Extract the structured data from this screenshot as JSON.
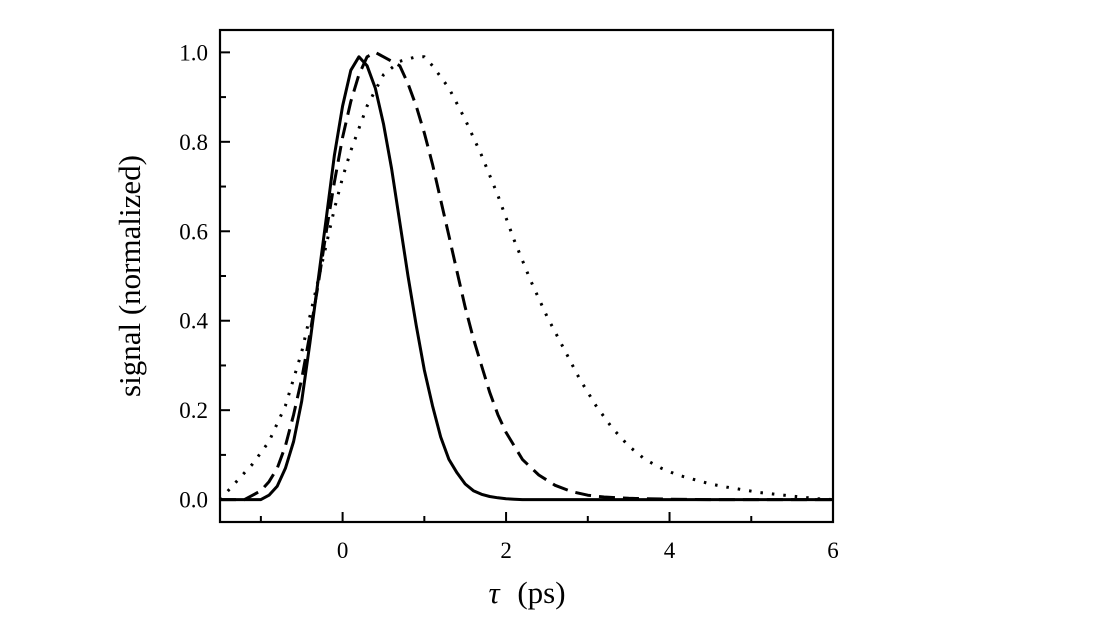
{
  "chart_data": {
    "type": "line",
    "xlabel_symbol": "τ",
    "xlabel_unit": "(ps)",
    "ylabel": "signal (normalized)",
    "xlim": [
      -1.5,
      6
    ],
    "ylim": [
      -0.05,
      1.05
    ],
    "x_ticks": [
      0,
      2,
      4,
      6
    ],
    "y_ticks": [
      0.0,
      0.2,
      0.4,
      0.6,
      0.8,
      1.0
    ],
    "x_minor_ticks": [
      -1,
      1,
      3,
      5
    ],
    "y_minor_ticks": [
      0.1,
      0.3,
      0.5,
      0.7,
      0.9
    ],
    "x_tick_labels": [
      "0",
      "2",
      "4",
      "6"
    ],
    "y_tick_labels": [
      "0.0",
      "0.2",
      "0.4",
      "0.6",
      "0.8",
      "1.0"
    ],
    "grid": false,
    "series": [
      {
        "style": "solid",
        "x": [
          -1.5,
          -1.0,
          -0.9,
          -0.8,
          -0.7,
          -0.6,
          -0.5,
          -0.4,
          -0.3,
          -0.2,
          -0.1,
          0.0,
          0.1,
          0.2,
          0.3,
          0.4,
          0.5,
          0.6,
          0.7,
          0.8,
          0.9,
          1.0,
          1.1,
          1.2,
          1.3,
          1.4,
          1.5,
          1.6,
          1.7,
          1.8,
          1.9,
          2.0,
          2.1,
          2.2,
          2.4,
          2.6,
          3.0,
          4.0,
          5.0,
          6.0
        ],
        "y": [
          0.0,
          0.0,
          0.01,
          0.03,
          0.07,
          0.13,
          0.22,
          0.35,
          0.49,
          0.63,
          0.77,
          0.88,
          0.96,
          0.99,
          0.97,
          0.92,
          0.84,
          0.74,
          0.62,
          0.5,
          0.39,
          0.29,
          0.21,
          0.14,
          0.09,
          0.06,
          0.035,
          0.02,
          0.012,
          0.007,
          0.004,
          0.002,
          0.001,
          0.0,
          0.0,
          0.0,
          0.0,
          0.0,
          0.0,
          0.0
        ]
      },
      {
        "style": "dashed",
        "x": [
          -1.5,
          -1.2,
          -1.1,
          -1.0,
          -0.9,
          -0.8,
          -0.7,
          -0.6,
          -0.5,
          -0.4,
          -0.3,
          -0.2,
          -0.1,
          0.0,
          0.1,
          0.2,
          0.3,
          0.4,
          0.5,
          0.6,
          0.7,
          0.8,
          0.9,
          1.0,
          1.1,
          1.2,
          1.3,
          1.4,
          1.5,
          1.6,
          1.7,
          1.8,
          1.9,
          2.0,
          2.2,
          2.4,
          2.6,
          2.8,
          3.0,
          3.2,
          3.5,
          4.0,
          4.5,
          5.0,
          6.0
        ],
        "y": [
          0.0,
          0.0,
          0.01,
          0.02,
          0.04,
          0.07,
          0.12,
          0.19,
          0.27,
          0.37,
          0.48,
          0.6,
          0.71,
          0.81,
          0.89,
          0.95,
          0.99,
          1.0,
          0.99,
          0.98,
          0.97,
          0.93,
          0.88,
          0.82,
          0.75,
          0.67,
          0.59,
          0.51,
          0.43,
          0.36,
          0.3,
          0.24,
          0.19,
          0.15,
          0.09,
          0.055,
          0.032,
          0.018,
          0.01,
          0.006,
          0.003,
          0.001,
          0.0,
          0.0,
          0.0
        ]
      },
      {
        "style": "dotted",
        "x": [
          -1.5,
          -1.3,
          -1.1,
          -0.9,
          -0.7,
          -0.5,
          -0.3,
          -0.1,
          0.0,
          0.1,
          0.3,
          0.5,
          0.7,
          0.9,
          1.0,
          1.1,
          1.3,
          1.5,
          1.7,
          1.9,
          2.1,
          2.3,
          2.5,
          2.7,
          2.9,
          3.1,
          3.3,
          3.5,
          3.7,
          3.9,
          4.1,
          4.3,
          4.5,
          4.7,
          4.9,
          5.1,
          5.3,
          5.5,
          5.7,
          5.8,
          6.0
        ],
        "y": [
          0.0,
          0.04,
          0.08,
          0.13,
          0.21,
          0.33,
          0.49,
          0.65,
          0.72,
          0.78,
          0.88,
          0.95,
          0.98,
          0.99,
          0.99,
          0.97,
          0.92,
          0.85,
          0.77,
          0.68,
          0.58,
          0.49,
          0.41,
          0.34,
          0.27,
          0.21,
          0.16,
          0.12,
          0.09,
          0.07,
          0.055,
          0.045,
          0.035,
          0.028,
          0.022,
          0.016,
          0.012,
          0.008,
          0.004,
          0.002,
          0.0
        ]
      }
    ]
  }
}
